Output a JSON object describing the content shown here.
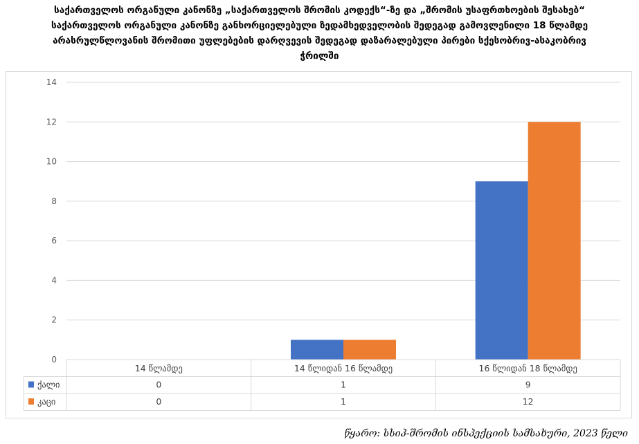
{
  "title": {
    "line1": "საქართველოს ორგანული კანონზე „საქართველოს შრომის კოდექს“-ზე და „შრომის უსაფრთხოების შესახებ“",
    "line2": "საქართველოს ორგანული კანონზე განხორციელებული ზედამხედველობის შედეგად გამოვლენილი 18 წლამდე",
    "line3": "არასრულწლოვანის  შრომითი უფლებების დარღვევის შედეგად დაზარალებული პირები სქესობრივ-ასაკობრივ",
    "line4": "ჭრილში"
  },
  "source": "წყარო: სსიპ-შრომის ინსპექციის სამსახური, 2023 წელი",
  "colors": {
    "female": "#4472c4",
    "male": "#ed7d31"
  },
  "chart_data": {
    "type": "bar",
    "categories": [
      "14 წლამდე",
      "14 წლიდან 16 წლამდე",
      "16 წლიდან 18 წლამდე"
    ],
    "series": [
      {
        "name": "ქალი",
        "values": [
          0,
          1,
          9
        ]
      },
      {
        "name": "კაცი",
        "values": [
          0,
          1,
          12
        ]
      }
    ],
    "ylim": [
      0,
      14
    ],
    "yticks": [
      0,
      2,
      4,
      6,
      8,
      10,
      12,
      14
    ],
    "grid": true,
    "legend": "data-table"
  }
}
